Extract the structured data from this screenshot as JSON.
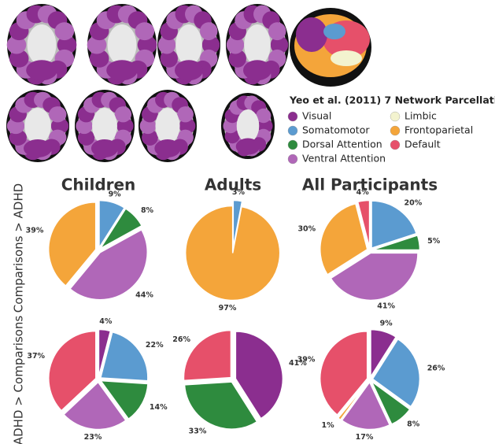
{
  "legend": {
    "title": "Yeo et al. (2011) 7 Network Parcellation",
    "items": [
      {
        "name": "Visual",
        "color": "#8b2e8f"
      },
      {
        "name": "Limbic",
        "color": "#f3f3cf"
      },
      {
        "name": "Somatomotor",
        "color": "#5b9bd0"
      },
      {
        "name": "Frontoparietal",
        "color": "#f4a53a"
      },
      {
        "name": "Dorsal Attention",
        "color": "#2e8b3e"
      },
      {
        "name": "Default",
        "color": "#e6506a"
      },
      {
        "name": "Ventral Attention",
        "color": "#b067b8"
      }
    ]
  },
  "column_titles": [
    "Children",
    "Adults",
    "All Participants"
  ],
  "row_labels": [
    "Comparisons > ADHD",
    "ADHD > Comparisons"
  ],
  "chart_data": [
    {
      "type": "pie",
      "values": [
        9,
        8,
        44,
        39
      ],
      "value_labels": [
        "9%",
        "8%",
        "44%",
        "39%"
      ],
      "colors": [
        "#5b9bd0",
        "#2e8b3e",
        "#b067b8",
        "#f4a53a"
      ]
    },
    {
      "type": "pie",
      "values": [
        3,
        97
      ],
      "value_labels": [
        "3%",
        "97%"
      ],
      "colors": [
        "#5b9bd0",
        "#f4a53a"
      ]
    },
    {
      "type": "pie",
      "values": [
        20,
        5,
        41,
        30,
        4
      ],
      "value_labels": [
        "20%",
        "5%",
        "41%",
        "30%",
        "4%"
      ],
      "colors": [
        "#5b9bd0",
        "#2e8b3e",
        "#b067b8",
        "#f4a53a",
        "#e6506a"
      ]
    },
    {
      "type": "pie",
      "values": [
        4,
        22,
        14,
        23,
        37
      ],
      "value_labels": [
        "4%",
        "22%",
        "14%",
        "23%",
        "37%"
      ],
      "colors": [
        "#8b2e8f",
        "#5b9bd0",
        "#2e8b3e",
        "#b067b8",
        "#e6506a"
      ]
    },
    {
      "type": "pie",
      "values": [
        41,
        33,
        26
      ],
      "value_labels": [
        "41%",
        "33%",
        "26%"
      ],
      "colors": [
        "#8b2e8f",
        "#2e8b3e",
        "#e6506a"
      ]
    },
    {
      "type": "pie",
      "values": [
        9,
        26,
        8,
        17,
        1,
        39
      ],
      "value_labels": [
        "9%",
        "26%",
        "8%",
        "17%",
        "1%",
        "39%"
      ],
      "colors": [
        "#8b2e8f",
        "#5b9bd0",
        "#2e8b3e",
        "#b067b8",
        "#f4a53a",
        "#e6506a"
      ]
    }
  ]
}
